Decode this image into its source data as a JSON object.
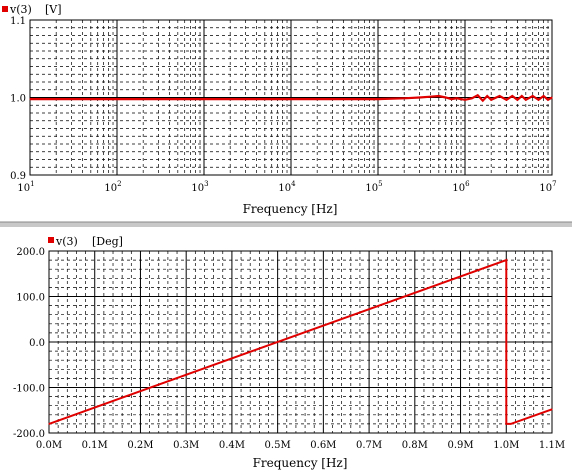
{
  "chart_data": [
    {
      "type": "line",
      "legend": "v(3)",
      "unit": "[V]",
      "xlabel": "Frequency [Hz]",
      "xscale": "log",
      "xlim": [
        10,
        10000000
      ],
      "ylim": [
        0.9,
        1.1
      ],
      "yticks": [
        "1.1",
        "1.0",
        "0.9"
      ],
      "xticks": [
        {
          "base": "10",
          "exp": "1"
        },
        {
          "base": "10",
          "exp": "2"
        },
        {
          "base": "10",
          "exp": "3"
        },
        {
          "base": "10",
          "exp": "4"
        },
        {
          "base": "10",
          "exp": "5"
        },
        {
          "base": "10",
          "exp": "6"
        },
        {
          "base": "10",
          "exp": "7"
        }
      ],
      "grid": true,
      "series_color": "#e00000",
      "x": [
        10,
        100,
        1000,
        10000,
        100000,
        200000,
        300000,
        400000,
        500000,
        600000,
        700000,
        800000,
        1000000,
        1200000,
        1400000,
        1600000,
        1800000,
        2000000,
        2500000,
        3000000,
        3500000,
        4000000,
        4500000,
        5000000,
        6000000,
        7000000,
        8000000,
        9000000,
        10000000
      ],
      "y": [
        0.998,
        0.998,
        0.998,
        0.998,
        0.998,
        0.999,
        1.0,
        1.001,
        1.002,
        1.0,
        0.998,
        0.999,
        0.997,
        0.999,
        1.003,
        0.996,
        1.002,
        0.997,
        1.002,
        0.997,
        1.002,
        0.997,
        1.002,
        0.997,
        1.002,
        0.997,
        1.002,
        0.997,
        1.0
      ]
    },
    {
      "type": "line",
      "legend": "v(3)",
      "unit": "[Deg]",
      "xlabel": "Frequency [Hz]",
      "xscale": "linear",
      "xlim": [
        0,
        1100000
      ],
      "ylim": [
        -200,
        200
      ],
      "yticks": [
        "200.0",
        "100.0",
        "0.0",
        "-100.0",
        "-200.0"
      ],
      "xticks": [
        "0.0M",
        "0.1M",
        "0.2M",
        "0.3M",
        "0.4M",
        "0.5M",
        "0.6M",
        "0.7M",
        "0.8M",
        "0.9M",
        "1.0M",
        "1.1M"
      ],
      "grid": true,
      "series_color": "#e00000",
      "x": [
        0,
        1000000,
        1000000,
        1010000,
        1100000
      ],
      "y": [
        -180,
        180,
        -180,
        -180,
        -148
      ]
    }
  ]
}
